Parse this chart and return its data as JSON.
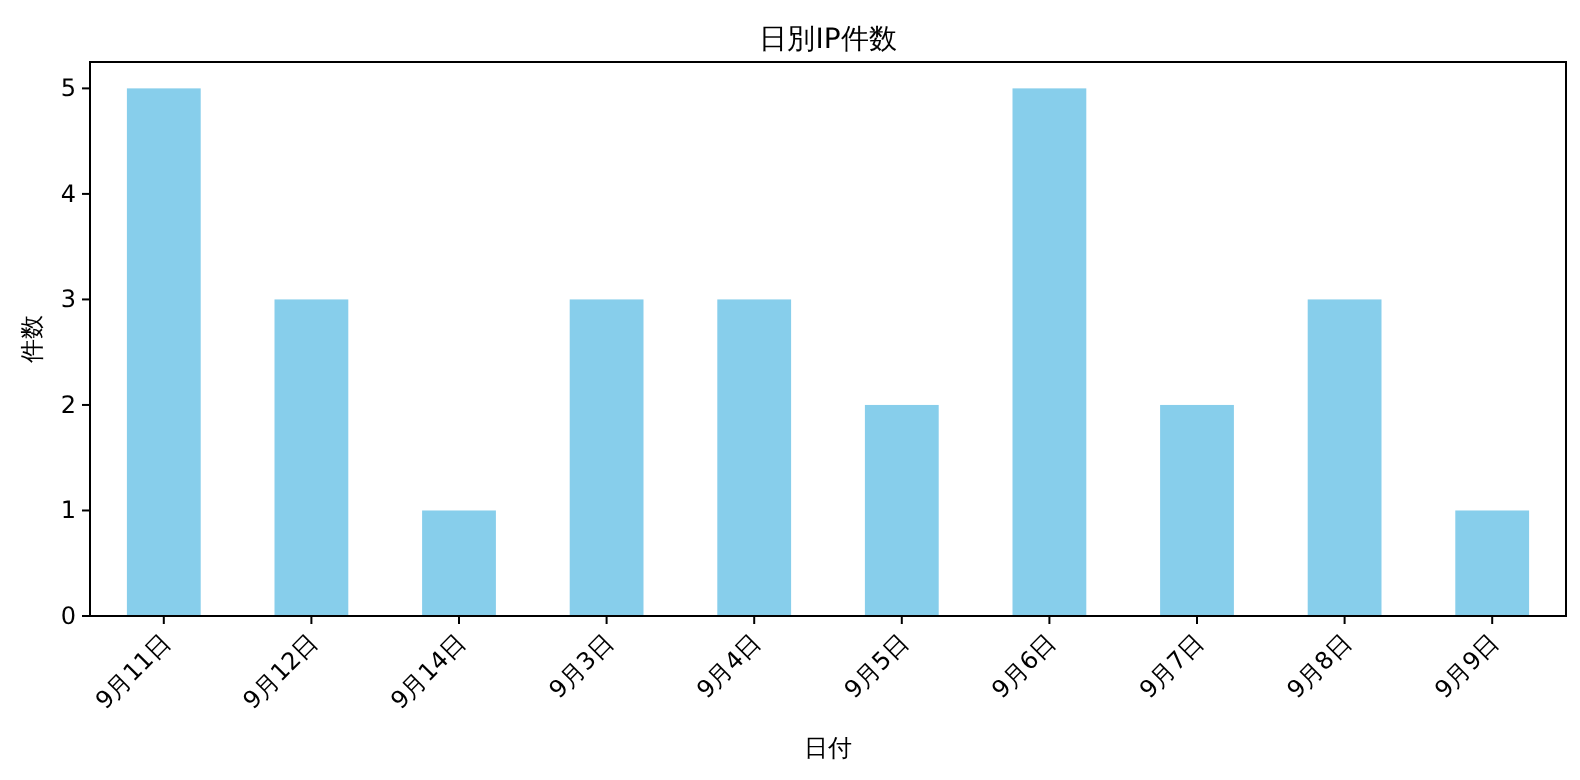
{
  "chart_data": {
    "type": "bar",
    "title": "日別IP件数",
    "xlabel": "日付",
    "ylabel": "件数",
    "categories": [
      "9月11日",
      "9月12日",
      "9月14日",
      "9月3日",
      "9月4日",
      "9月5日",
      "9月6日",
      "9月7日",
      "9月8日",
      "9月9日"
    ],
    "values": [
      5,
      3,
      1,
      3,
      3,
      2,
      5,
      2,
      3,
      1
    ],
    "color": "#87ceeb",
    "ylim": [
      0,
      5.25
    ],
    "yticks": [
      0,
      1,
      2,
      3,
      4,
      5
    ],
    "grid": false
  }
}
